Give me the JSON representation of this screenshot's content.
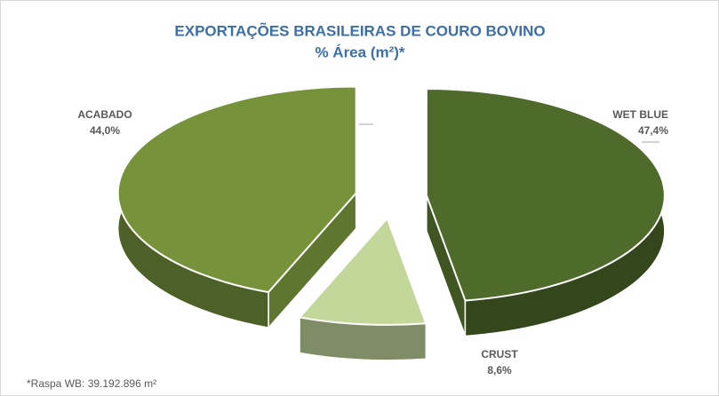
{
  "chart_data": {
    "type": "pie3d",
    "title": "EXPORTAÇÕES BRASILEIRAS DE COURO BOVINO",
    "subtitle": "% Área (m²)*",
    "categories": [
      "WET BLUE",
      "CRUST",
      "ACABADO"
    ],
    "values": [
      47.4,
      8.6,
      44.0
    ],
    "value_labels": [
      "47,4%",
      "8,6%",
      "44,0%"
    ],
    "colors": [
      "#4f6b2b",
      "#c4d79b",
      "#76933c"
    ],
    "footnote": "*Raspa WB: 39.192.896 m²"
  }
}
